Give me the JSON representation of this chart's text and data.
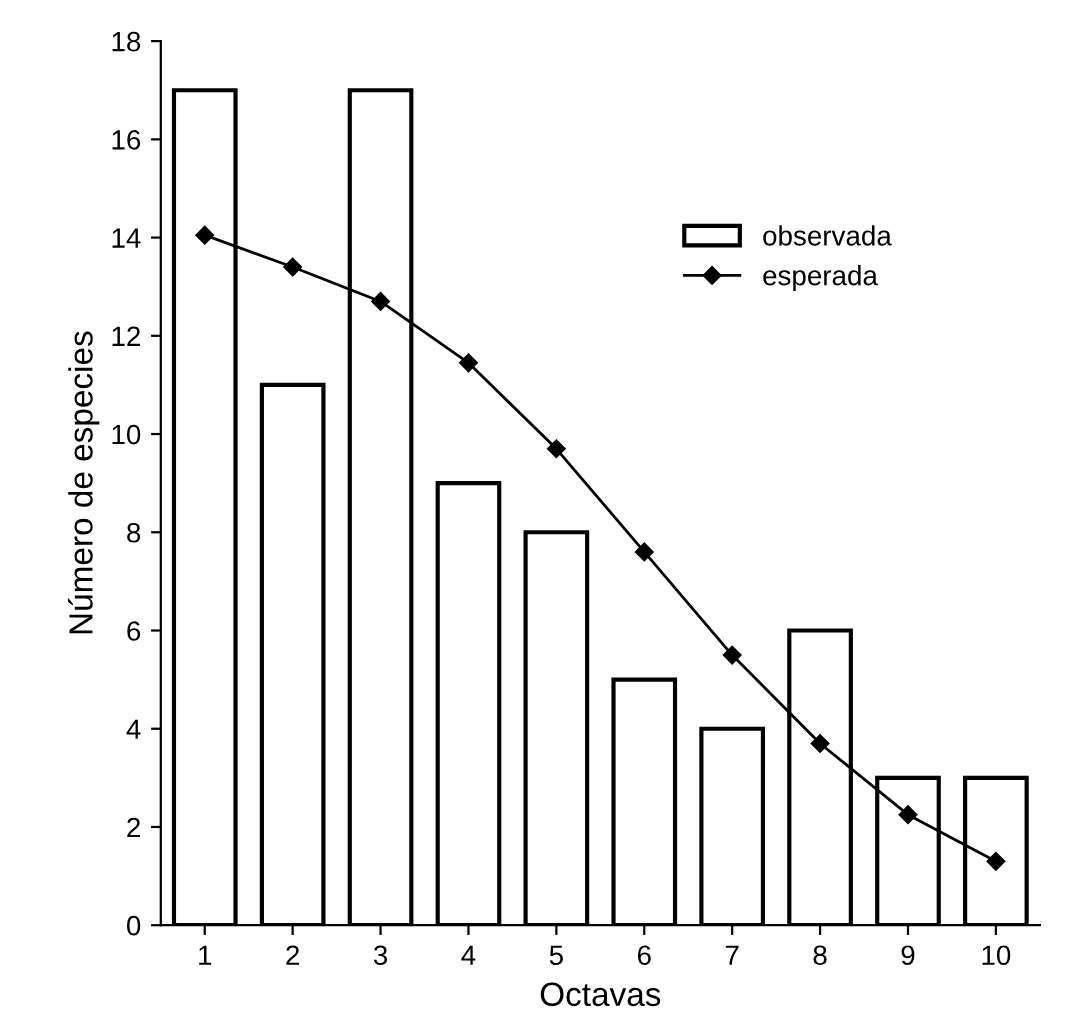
{
  "chart_data": {
    "type": "bar",
    "xlabel": "Octavas",
    "ylabel": "Número de especies",
    "categories": [
      "1",
      "2",
      "3",
      "4",
      "5",
      "6",
      "7",
      "8",
      "9",
      "10"
    ],
    "series": [
      {
        "name": "observada",
        "color": "#000000",
        "values": [
          17,
          11,
          17,
          9,
          8,
          5,
          4,
          6,
          3,
          3
        ]
      },
      {
        "name": "esperada",
        "type": "line",
        "color": "#000000",
        "marker": "diamond",
        "values": [
          14.05,
          13.4,
          12.7,
          11.45,
          9.7,
          7.6,
          5.5,
          3.7,
          2.25,
          1.3
        ]
      }
    ],
    "ylim": [
      0,
      18
    ],
    "yticks": [
      0,
      2,
      4,
      6,
      8,
      10,
      12,
      14,
      16,
      18
    ],
    "grid": false,
    "legend": "top right"
  }
}
